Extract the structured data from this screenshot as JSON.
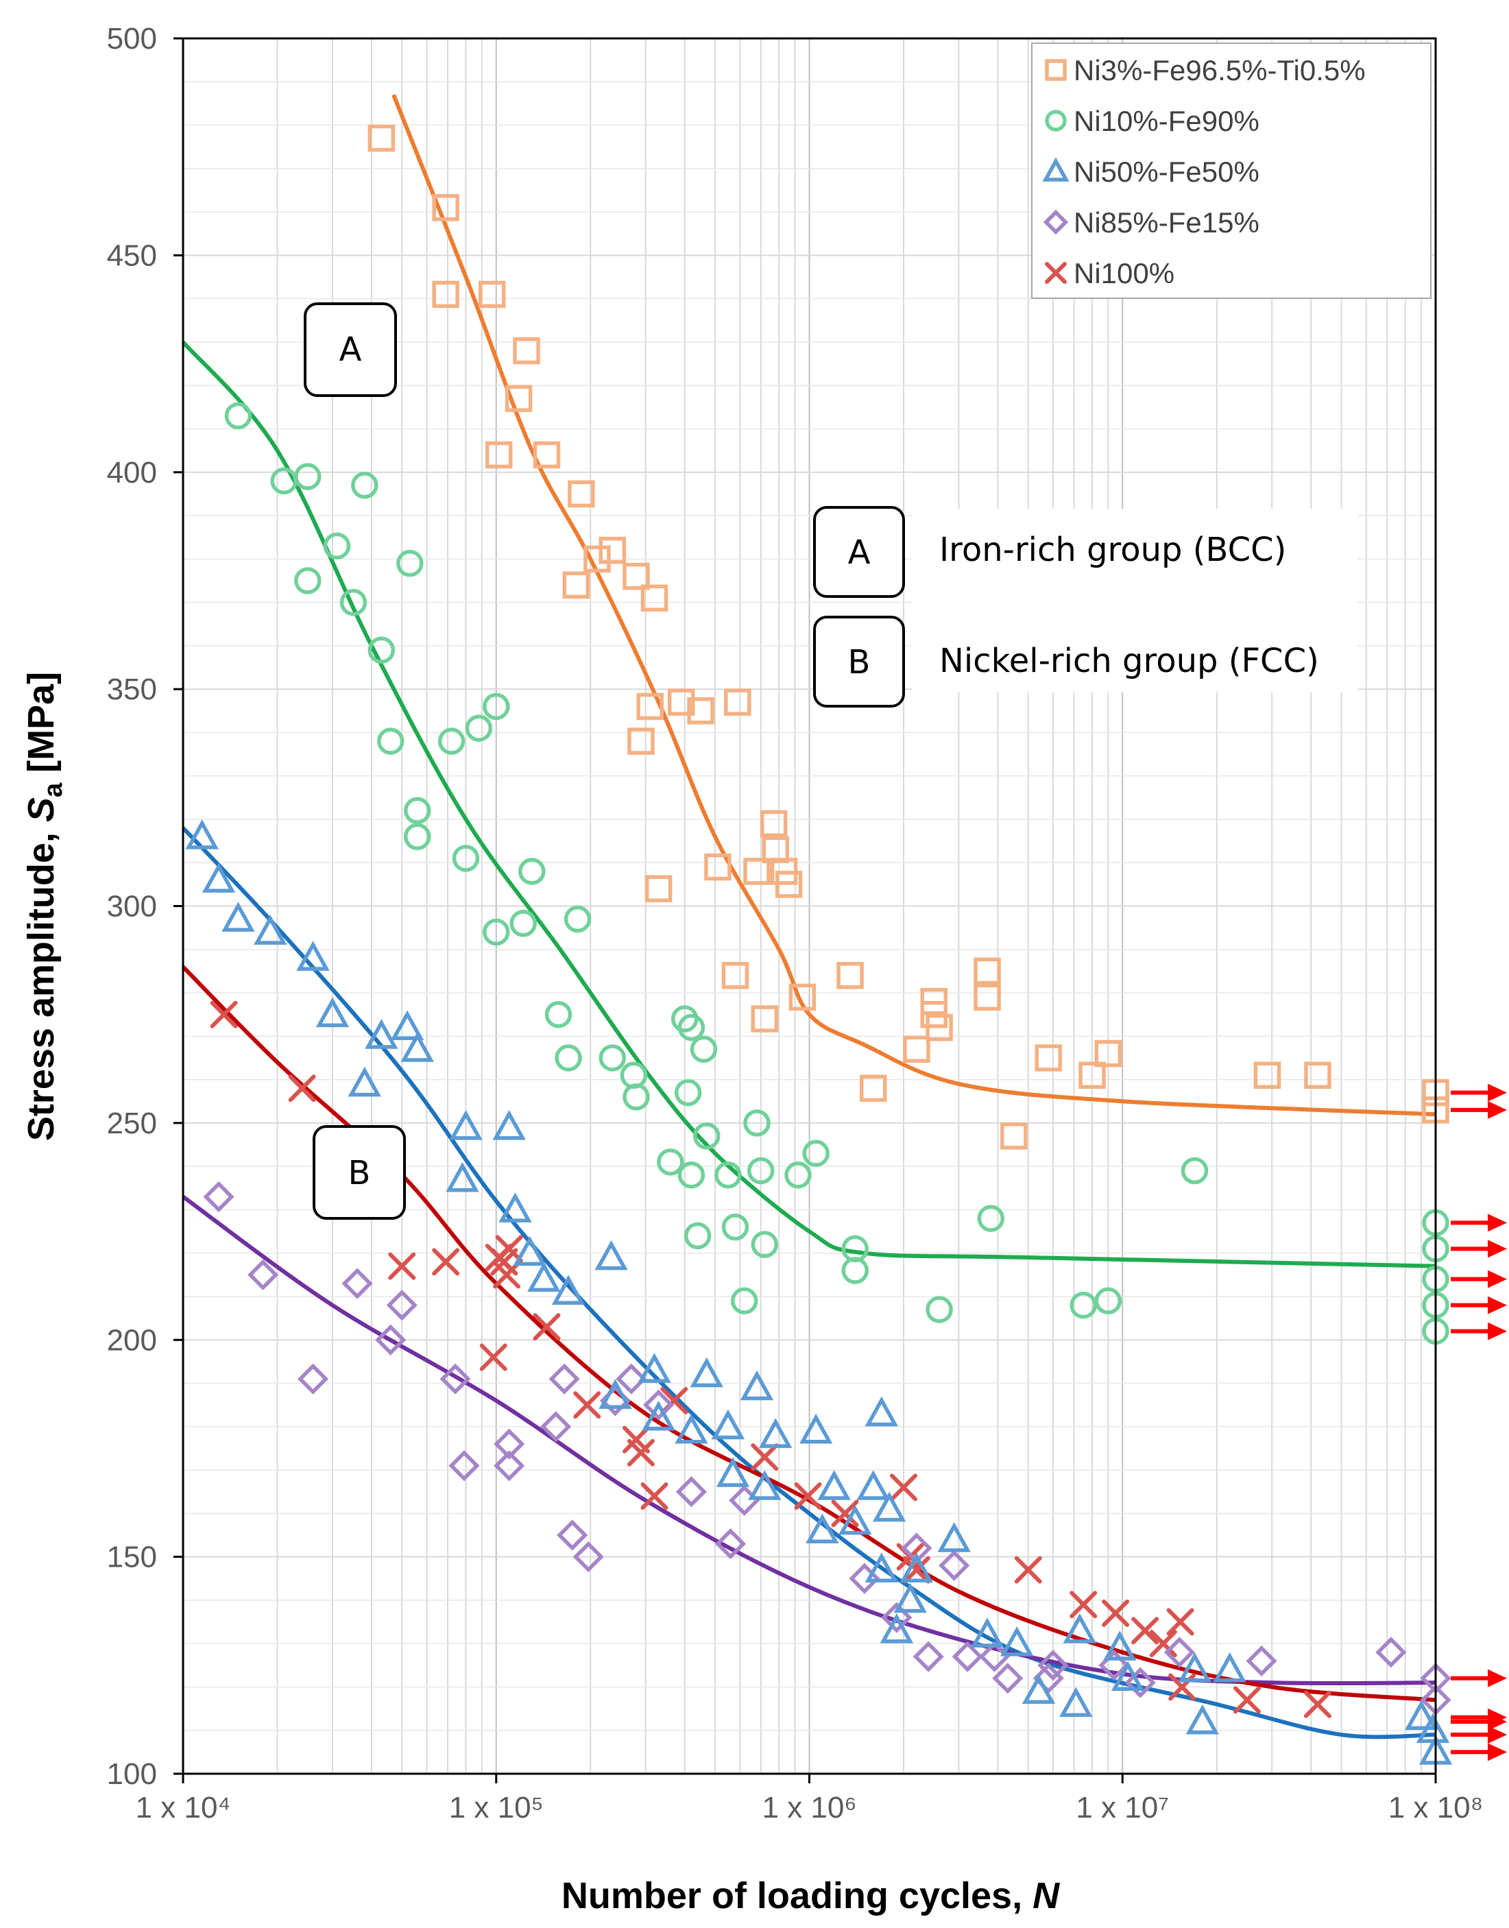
{
  "chart_data": {
    "type": "scatter",
    "title": "",
    "xlabel": "Number of loading cycles, ",
    "xlabel_italic": "N",
    "ylabel_prefix": "Stress amplitude, ",
    "ylabel_symbol": "S",
    "ylabel_subscript": "a",
    "ylabel_suffix": " [MPa]",
    "x_scale": "log",
    "xlim": [
      10000,
      100000000
    ],
    "ylim": [
      100,
      500
    ],
    "x_ticks": [
      {
        "value": 10000,
        "label": "1 x 10⁴"
      },
      {
        "value": 100000,
        "label": "1 x 10⁵"
      },
      {
        "value": 1000000,
        "label": "1 x 10⁶"
      },
      {
        "value": 10000000,
        "label": "1 x 10⁷"
      },
      {
        "value": 100000000,
        "label": "1 x 10⁸"
      }
    ],
    "y_ticks": [
      100,
      150,
      200,
      250,
      300,
      350,
      400,
      450,
      500
    ],
    "grid": true,
    "legend_position": "top-right",
    "series": [
      {
        "name": "Ni3%-Fe96.5%-Ti0.5%",
        "marker": "square",
        "color": "#F4B183",
        "line_color": "#ED7D31",
        "points": [
          [
            43000,
            477
          ],
          [
            69000,
            461
          ],
          [
            69000,
            441
          ],
          [
            97000,
            441
          ],
          [
            102000,
            404
          ],
          [
            125000,
            428
          ],
          [
            118000,
            417
          ],
          [
            145000,
            404
          ],
          [
            187000,
            395
          ],
          [
            180000,
            374
          ],
          [
            210000,
            380
          ],
          [
            235000,
            382
          ],
          [
            280000,
            376
          ],
          [
            320000,
            371
          ],
          [
            290000,
            338
          ],
          [
            310000,
            346
          ],
          [
            330000,
            304
          ],
          [
            390000,
            347
          ],
          [
            450000,
            345
          ],
          [
            510000,
            309
          ],
          [
            590000,
            347
          ],
          [
            580000,
            284
          ],
          [
            680000,
            308
          ],
          [
            720000,
            274
          ],
          [
            770000,
            319
          ],
          [
            780000,
            313
          ],
          [
            830000,
            308
          ],
          [
            860000,
            305
          ],
          [
            950000,
            279
          ],
          [
            1350000,
            284
          ],
          [
            1600000,
            258
          ],
          [
            2200000,
            267
          ],
          [
            2500000,
            278
          ],
          [
            2500000,
            275
          ],
          [
            2600000,
            272
          ],
          [
            3700000,
            285
          ],
          [
            3700000,
            279
          ],
          [
            4500000,
            247
          ],
          [
            5800000,
            265
          ],
          [
            8000000,
            261
          ],
          [
            9000000,
            266
          ],
          [
            29000000,
            261
          ],
          [
            42000000,
            261
          ],
          [
            100000000,
            257
          ],
          [
            100000000,
            253
          ]
        ],
        "curve": [
          [
            47000,
            487
          ],
          [
            80000,
            445
          ],
          [
            130000,
            405
          ],
          [
            200000,
            380
          ],
          [
            330000,
            347
          ],
          [
            500000,
            316
          ],
          [
            800000,
            290
          ],
          [
            1000000,
            275
          ],
          [
            1500000,
            268
          ],
          [
            3000000,
            259
          ],
          [
            10000000,
            255
          ],
          [
            100000000,
            252
          ]
        ],
        "runouts": [
          257,
          253
        ]
      },
      {
        "name": "Ni10%-Fe90%",
        "marker": "circle",
        "color": "#70D19A",
        "line_color": "#1EAB50",
        "points": [
          [
            15000,
            413
          ],
          [
            21000,
            398
          ],
          [
            25000,
            399
          ],
          [
            31000,
            383
          ],
          [
            35000,
            370
          ],
          [
            25000,
            375
          ],
          [
            38000,
            397
          ],
          [
            43000,
            359
          ],
          [
            46000,
            338
          ],
          [
            53000,
            379
          ],
          [
            56000,
            322
          ],
          [
            56000,
            316
          ],
          [
            72000,
            338
          ],
          [
            80000,
            311
          ],
          [
            88000,
            341
          ],
          [
            100000,
            346
          ],
          [
            100000,
            294
          ],
          [
            122000,
            296
          ],
          [
            130000,
            308
          ],
          [
            158000,
            275
          ],
          [
            170000,
            265
          ],
          [
            182000,
            297
          ],
          [
            235000,
            265
          ],
          [
            275000,
            261
          ],
          [
            280000,
            256
          ],
          [
            360000,
            241
          ],
          [
            400000,
            274
          ],
          [
            420000,
            272
          ],
          [
            410000,
            257
          ],
          [
            420000,
            238
          ],
          [
            460000,
            267
          ],
          [
            470000,
            247
          ],
          [
            440000,
            224
          ],
          [
            550000,
            238
          ],
          [
            580000,
            226
          ],
          [
            620000,
            209
          ],
          [
            680000,
            250
          ],
          [
            700000,
            239
          ],
          [
            720000,
            222
          ],
          [
            920000,
            238
          ],
          [
            1050000,
            243
          ],
          [
            1400000,
            221
          ],
          [
            1400000,
            216
          ],
          [
            2600000,
            207
          ],
          [
            3800000,
            228
          ],
          [
            7500000,
            208
          ],
          [
            9000000,
            209
          ],
          [
            17000000,
            239
          ],
          [
            100000000,
            227
          ],
          [
            100000000,
            221
          ],
          [
            100000000,
            214
          ],
          [
            100000000,
            208
          ],
          [
            100000000,
            202
          ]
        ],
        "curve": [
          [
            10000,
            430
          ],
          [
            20000,
            405
          ],
          [
            40000,
            360
          ],
          [
            80000,
            320
          ],
          [
            160000,
            290
          ],
          [
            300000,
            262
          ],
          [
            500000,
            243
          ],
          [
            1000000,
            225
          ],
          [
            1500000,
            220
          ],
          [
            5000000,
            219
          ],
          [
            100000000,
            217
          ]
        ],
        "runouts": [
          227,
          221,
          214,
          208,
          202
        ]
      },
      {
        "name": "Ni50%-Fe50%",
        "marker": "triangle",
        "color": "#5B9BD5",
        "line_color": "#1C72BD",
        "points": [
          [
            11500,
            316
          ],
          [
            13000,
            306
          ],
          [
            15000,
            297
          ],
          [
            19000,
            294
          ],
          [
            26000,
            288
          ],
          [
            30000,
            275
          ],
          [
            38000,
            259
          ],
          [
            43000,
            270
          ],
          [
            52000,
            272
          ],
          [
            56000,
            267
          ],
          [
            80000,
            249
          ],
          [
            78000,
            237
          ],
          [
            110000,
            249
          ],
          [
            115000,
            230
          ],
          [
            128000,
            220
          ],
          [
            142000,
            214
          ],
          [
            170000,
            211
          ],
          [
            233000,
            219
          ],
          [
            240000,
            187
          ],
          [
            320000,
            193
          ],
          [
            330000,
            182
          ],
          [
            420000,
            179
          ],
          [
            470000,
            192
          ],
          [
            550000,
            180
          ],
          [
            570000,
            169
          ],
          [
            680000,
            189
          ],
          [
            720000,
            166
          ],
          [
            780000,
            178
          ],
          [
            1050000,
            179
          ],
          [
            1100000,
            156
          ],
          [
            1200000,
            166
          ],
          [
            1400000,
            158
          ],
          [
            1600000,
            166
          ],
          [
            1700000,
            147
          ],
          [
            1700000,
            183
          ],
          [
            1800000,
            161
          ],
          [
            1900000,
            133
          ],
          [
            2100000,
            140
          ],
          [
            2200000,
            147
          ],
          [
            2900000,
            154
          ],
          [
            3700000,
            132
          ],
          [
            4600000,
            130
          ],
          [
            5400000,
            119
          ],
          [
            7100000,
            116
          ],
          [
            7300000,
            133
          ],
          [
            9800000,
            129
          ],
          [
            10400000,
            122
          ],
          [
            17000000,
            124
          ],
          [
            18000000,
            112
          ],
          [
            22000000,
            124
          ],
          [
            90000000,
            113
          ],
          [
            98000000,
            110
          ],
          [
            100000000,
            105
          ]
        ],
        "curve": [
          [
            10000,
            318
          ],
          [
            20000,
            295
          ],
          [
            50000,
            262
          ],
          [
            100000,
            232
          ],
          [
            200000,
            207
          ],
          [
            500000,
            178
          ],
          [
            1000000,
            160
          ],
          [
            2000000,
            144
          ],
          [
            5000000,
            127
          ],
          [
            20000000,
            116
          ],
          [
            50000000,
            109
          ],
          [
            100000000,
            109
          ]
        ],
        "runouts": [
          112,
          109,
          105
        ]
      },
      {
        "name": "Ni85%-Fe15%",
        "marker": "diamond",
        "color": "#A584C8",
        "line_color": "#7030A0",
        "points": [
          [
            13000,
            233
          ],
          [
            18000,
            215
          ],
          [
            26000,
            191
          ],
          [
            36000,
            213
          ],
          [
            46000,
            200
          ],
          [
            50000,
            208
          ],
          [
            74000,
            191
          ],
          [
            79000,
            171
          ],
          [
            110000,
            176
          ],
          [
            110000,
            171
          ],
          [
            155000,
            180
          ],
          [
            165000,
            191
          ],
          [
            175000,
            155
          ],
          [
            197000,
            150
          ],
          [
            240000,
            186
          ],
          [
            270000,
            191
          ],
          [
            330000,
            185
          ],
          [
            420000,
            165
          ],
          [
            560000,
            153
          ],
          [
            620000,
            163
          ],
          [
            1500000,
            145
          ],
          [
            1900000,
            136
          ],
          [
            2200000,
            152
          ],
          [
            2400000,
            127
          ],
          [
            2900000,
            148
          ],
          [
            3200000,
            127
          ],
          [
            3900000,
            127
          ],
          [
            4300000,
            122
          ],
          [
            5800000,
            122
          ],
          [
            6000000,
            125
          ],
          [
            9400000,
            125
          ],
          [
            11400000,
            121
          ],
          [
            15200000,
            128
          ],
          [
            27800000,
            126
          ],
          [
            72000000,
            128
          ],
          [
            100000000,
            122
          ],
          [
            100000000,
            117
          ]
        ],
        "curve": [
          [
            10000,
            233
          ],
          [
            30000,
            208
          ],
          [
            100000,
            186
          ],
          [
            300000,
            163
          ],
          [
            1000000,
            143
          ],
          [
            3000000,
            131
          ],
          [
            10000000,
            123
          ],
          [
            30000000,
            121
          ],
          [
            100000000,
            121
          ]
        ],
        "runouts": [
          122
        ]
      },
      {
        "name": "Ni100%",
        "marker": "cross",
        "color": "#D9534F",
        "line_color": "#C00000",
        "points": [
          [
            13500,
            275
          ],
          [
            24000,
            258
          ],
          [
            50000,
            217
          ],
          [
            69000,
            218
          ],
          [
            98000,
            196
          ],
          [
            102000,
            219
          ],
          [
            106000,
            218
          ],
          [
            108000,
            215
          ],
          [
            110000,
            221
          ],
          [
            145000,
            203
          ],
          [
            195000,
            185
          ],
          [
            280000,
            177
          ],
          [
            290000,
            174
          ],
          [
            320000,
            164
          ],
          [
            370000,
            186
          ],
          [
            720000,
            173
          ],
          [
            990000,
            164
          ],
          [
            1300000,
            160
          ],
          [
            2000000,
            166
          ],
          [
            2100000,
            150
          ],
          [
            2200000,
            147
          ],
          [
            5000000,
            147
          ],
          [
            7500000,
            139
          ],
          [
            9500000,
            137
          ],
          [
            11800000,
            133
          ],
          [
            13500000,
            130
          ],
          [
            15300000,
            135
          ],
          [
            15500000,
            120
          ],
          [
            25000000,
            117
          ],
          [
            42000000,
            116
          ]
        ],
        "curve": [
          [
            10000,
            286
          ],
          [
            20000,
            264
          ],
          [
            50000,
            238
          ],
          [
            100000,
            213
          ],
          [
            300000,
            183
          ],
          [
            1000000,
            163
          ],
          [
            3000000,
            142
          ],
          [
            10000000,
            128
          ],
          [
            30000000,
            120
          ],
          [
            100000000,
            117
          ]
        ],
        "runouts": [
          113
        ]
      }
    ],
    "annotations": [
      {
        "label": "A",
        "text": "Iron-rich group (BCC)"
      },
      {
        "label": "B",
        "text": "Nickel-rich group (FCC)"
      }
    ],
    "runout_color": "#FF0000"
  }
}
